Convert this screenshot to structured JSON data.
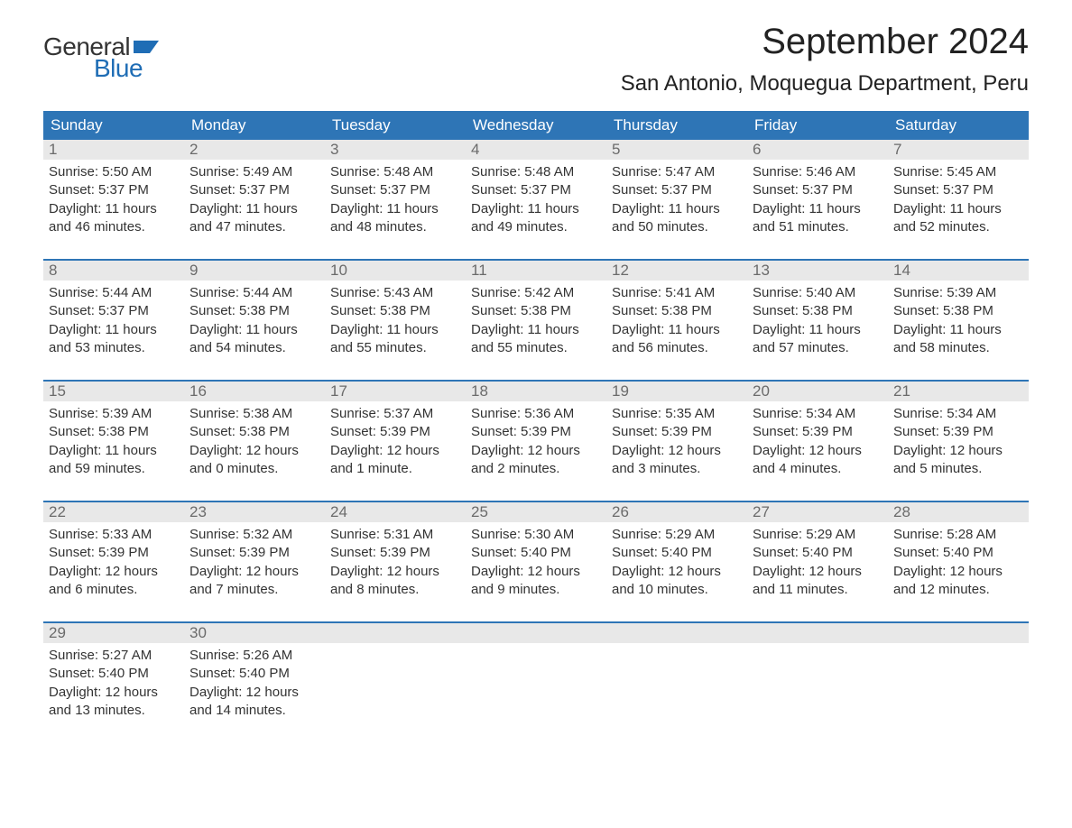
{
  "logo": {
    "text_general": "General",
    "text_blue": "Blue",
    "accent_color": "#1f6db5"
  },
  "title": "September 2024",
  "location": "San Antonio, Moquegua Department, Peru",
  "colors": {
    "header_bg": "#2e75b6",
    "header_text": "#ffffff",
    "daynum_bg": "#e8e8e8",
    "daynum_text": "#6b6b6b",
    "body_text": "#333333",
    "week_border": "#2e75b6",
    "page_bg": "#ffffff"
  },
  "layout": {
    "columns": 7,
    "rows": 5,
    "font_family": "Arial",
    "title_fontsize": 40,
    "location_fontsize": 24,
    "header_fontsize": 17,
    "cell_fontsize": 15
  },
  "day_headers": [
    "Sunday",
    "Monday",
    "Tuesday",
    "Wednesday",
    "Thursday",
    "Friday",
    "Saturday"
  ],
  "weeks": [
    [
      {
        "num": "1",
        "sunrise": "Sunrise: 5:50 AM",
        "sunset": "Sunset: 5:37 PM",
        "dl1": "Daylight: 11 hours",
        "dl2": "and 46 minutes."
      },
      {
        "num": "2",
        "sunrise": "Sunrise: 5:49 AM",
        "sunset": "Sunset: 5:37 PM",
        "dl1": "Daylight: 11 hours",
        "dl2": "and 47 minutes."
      },
      {
        "num": "3",
        "sunrise": "Sunrise: 5:48 AM",
        "sunset": "Sunset: 5:37 PM",
        "dl1": "Daylight: 11 hours",
        "dl2": "and 48 minutes."
      },
      {
        "num": "4",
        "sunrise": "Sunrise: 5:48 AM",
        "sunset": "Sunset: 5:37 PM",
        "dl1": "Daylight: 11 hours",
        "dl2": "and 49 minutes."
      },
      {
        "num": "5",
        "sunrise": "Sunrise: 5:47 AM",
        "sunset": "Sunset: 5:37 PM",
        "dl1": "Daylight: 11 hours",
        "dl2": "and 50 minutes."
      },
      {
        "num": "6",
        "sunrise": "Sunrise: 5:46 AM",
        "sunset": "Sunset: 5:37 PM",
        "dl1": "Daylight: 11 hours",
        "dl2": "and 51 minutes."
      },
      {
        "num": "7",
        "sunrise": "Sunrise: 5:45 AM",
        "sunset": "Sunset: 5:37 PM",
        "dl1": "Daylight: 11 hours",
        "dl2": "and 52 minutes."
      }
    ],
    [
      {
        "num": "8",
        "sunrise": "Sunrise: 5:44 AM",
        "sunset": "Sunset: 5:37 PM",
        "dl1": "Daylight: 11 hours",
        "dl2": "and 53 minutes."
      },
      {
        "num": "9",
        "sunrise": "Sunrise: 5:44 AM",
        "sunset": "Sunset: 5:38 PM",
        "dl1": "Daylight: 11 hours",
        "dl2": "and 54 minutes."
      },
      {
        "num": "10",
        "sunrise": "Sunrise: 5:43 AM",
        "sunset": "Sunset: 5:38 PM",
        "dl1": "Daylight: 11 hours",
        "dl2": "and 55 minutes."
      },
      {
        "num": "11",
        "sunrise": "Sunrise: 5:42 AM",
        "sunset": "Sunset: 5:38 PM",
        "dl1": "Daylight: 11 hours",
        "dl2": "and 55 minutes."
      },
      {
        "num": "12",
        "sunrise": "Sunrise: 5:41 AM",
        "sunset": "Sunset: 5:38 PM",
        "dl1": "Daylight: 11 hours",
        "dl2": "and 56 minutes."
      },
      {
        "num": "13",
        "sunrise": "Sunrise: 5:40 AM",
        "sunset": "Sunset: 5:38 PM",
        "dl1": "Daylight: 11 hours",
        "dl2": "and 57 minutes."
      },
      {
        "num": "14",
        "sunrise": "Sunrise: 5:39 AM",
        "sunset": "Sunset: 5:38 PM",
        "dl1": "Daylight: 11 hours",
        "dl2": "and 58 minutes."
      }
    ],
    [
      {
        "num": "15",
        "sunrise": "Sunrise: 5:39 AM",
        "sunset": "Sunset: 5:38 PM",
        "dl1": "Daylight: 11 hours",
        "dl2": "and 59 minutes."
      },
      {
        "num": "16",
        "sunrise": "Sunrise: 5:38 AM",
        "sunset": "Sunset: 5:38 PM",
        "dl1": "Daylight: 12 hours",
        "dl2": "and 0 minutes."
      },
      {
        "num": "17",
        "sunrise": "Sunrise: 5:37 AM",
        "sunset": "Sunset: 5:39 PM",
        "dl1": "Daylight: 12 hours",
        "dl2": "and 1 minute."
      },
      {
        "num": "18",
        "sunrise": "Sunrise: 5:36 AM",
        "sunset": "Sunset: 5:39 PM",
        "dl1": "Daylight: 12 hours",
        "dl2": "and 2 minutes."
      },
      {
        "num": "19",
        "sunrise": "Sunrise: 5:35 AM",
        "sunset": "Sunset: 5:39 PM",
        "dl1": "Daylight: 12 hours",
        "dl2": "and 3 minutes."
      },
      {
        "num": "20",
        "sunrise": "Sunrise: 5:34 AM",
        "sunset": "Sunset: 5:39 PM",
        "dl1": "Daylight: 12 hours",
        "dl2": "and 4 minutes."
      },
      {
        "num": "21",
        "sunrise": "Sunrise: 5:34 AM",
        "sunset": "Sunset: 5:39 PM",
        "dl1": "Daylight: 12 hours",
        "dl2": "and 5 minutes."
      }
    ],
    [
      {
        "num": "22",
        "sunrise": "Sunrise: 5:33 AM",
        "sunset": "Sunset: 5:39 PM",
        "dl1": "Daylight: 12 hours",
        "dl2": "and 6 minutes."
      },
      {
        "num": "23",
        "sunrise": "Sunrise: 5:32 AM",
        "sunset": "Sunset: 5:39 PM",
        "dl1": "Daylight: 12 hours",
        "dl2": "and 7 minutes."
      },
      {
        "num": "24",
        "sunrise": "Sunrise: 5:31 AM",
        "sunset": "Sunset: 5:39 PM",
        "dl1": "Daylight: 12 hours",
        "dl2": "and 8 minutes."
      },
      {
        "num": "25",
        "sunrise": "Sunrise: 5:30 AM",
        "sunset": "Sunset: 5:40 PM",
        "dl1": "Daylight: 12 hours",
        "dl2": "and 9 minutes."
      },
      {
        "num": "26",
        "sunrise": "Sunrise: 5:29 AM",
        "sunset": "Sunset: 5:40 PM",
        "dl1": "Daylight: 12 hours",
        "dl2": "and 10 minutes."
      },
      {
        "num": "27",
        "sunrise": "Sunrise: 5:29 AM",
        "sunset": "Sunset: 5:40 PM",
        "dl1": "Daylight: 12 hours",
        "dl2": "and 11 minutes."
      },
      {
        "num": "28",
        "sunrise": "Sunrise: 5:28 AM",
        "sunset": "Sunset: 5:40 PM",
        "dl1": "Daylight: 12 hours",
        "dl2": "and 12 minutes."
      }
    ],
    [
      {
        "num": "29",
        "sunrise": "Sunrise: 5:27 AM",
        "sunset": "Sunset: 5:40 PM",
        "dl1": "Daylight: 12 hours",
        "dl2": "and 13 minutes."
      },
      {
        "num": "30",
        "sunrise": "Sunrise: 5:26 AM",
        "sunset": "Sunset: 5:40 PM",
        "dl1": "Daylight: 12 hours",
        "dl2": "and 14 minutes."
      },
      null,
      null,
      null,
      null,
      null
    ]
  ]
}
